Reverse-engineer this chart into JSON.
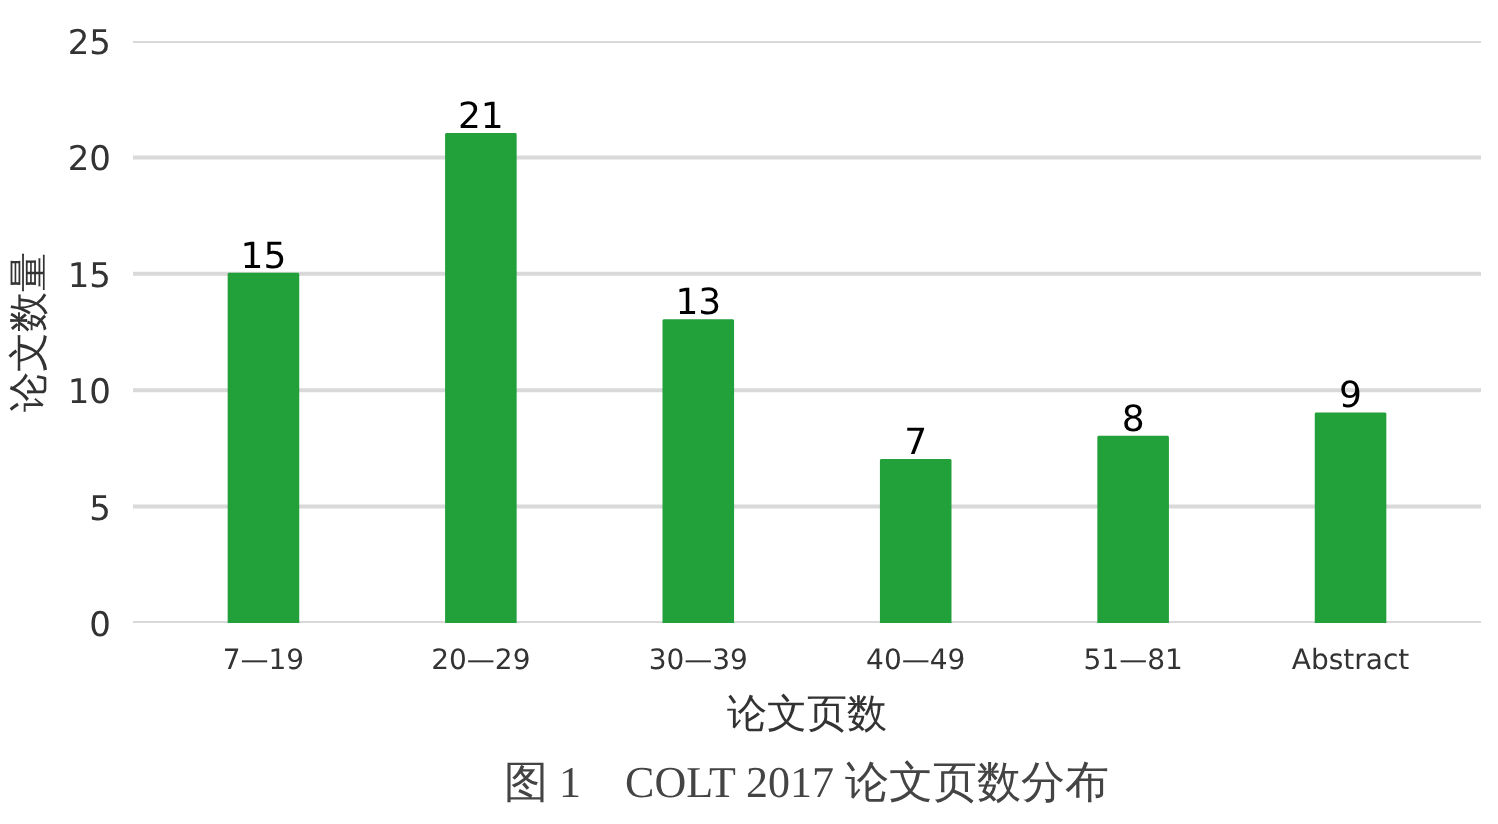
{
  "chart_data": {
    "type": "bar",
    "title": "图 1　COLT 2017 论文页数分布",
    "xlabel": "论文页数",
    "ylabel": "论文数量",
    "categories": [
      "7—19",
      "20—29",
      "30—39",
      "40—49",
      "51—81",
      "Abstract"
    ],
    "values": [
      15,
      21,
      13,
      7,
      8,
      9
    ],
    "color": "#22a03a",
    "ylim": [
      0,
      25
    ],
    "yticks": [
      0,
      5,
      10,
      15,
      20,
      25
    ],
    "grid": "y",
    "data_labels": true
  }
}
